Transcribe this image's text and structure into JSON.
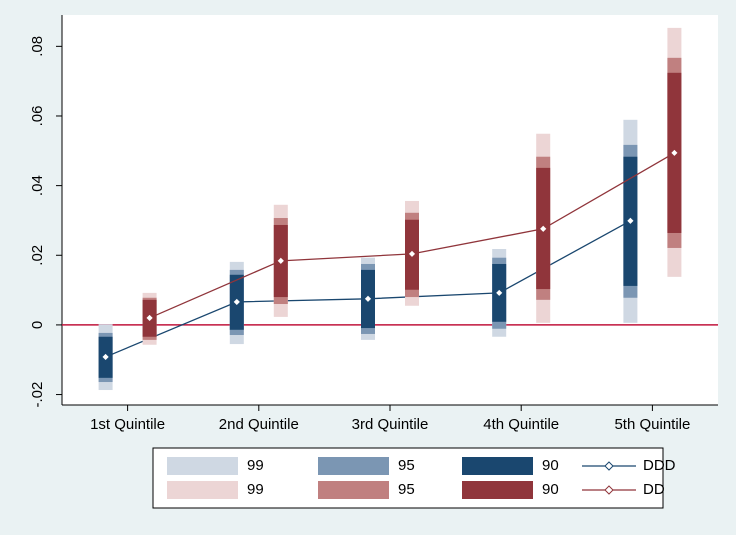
{
  "chart_data": {
    "type": "interval-dot",
    "categories": [
      "1st Quintile",
      "2nd Quintile",
      "3rd Quintile",
      "4th Quintile",
      "5th Quintile"
    ],
    "ylim": [
      -0.023,
      0.089
    ],
    "yticks": [
      {
        "value": -0.02,
        "label": "-.02"
      },
      0,
      {
        "value": 0.02,
        "label": ".02"
      },
      {
        "value": 0.04,
        "label": ".04"
      },
      {
        "value": 0.06,
        "label": ".06"
      },
      {
        "value": 0.08,
        "label": ".08"
      }
    ],
    "yline": {
      "value": 0,
      "color": "#c0143c"
    },
    "series": [
      {
        "name": "DDD",
        "color": "#1a476f",
        "values": [
          -0.0092,
          0.0066,
          0.0075,
          0.0092,
          0.0299
        ],
        "intervals": [
          {
            "name": "99",
            "color": "#cfd8e3",
            "lows": [
              -0.0187,
              -0.0055,
              -0.0043,
              -0.0034,
              0.0006
            ],
            "highs": [
              0.0002,
              0.0181,
              0.0193,
              0.0218,
              0.0589
            ]
          },
          {
            "name": "95",
            "color": "#7b96b3",
            "lows": [
              -0.0164,
              -0.0029,
              -0.0026,
              -0.0011,
              0.0078
            ],
            "highs": [
              -0.0023,
              0.0158,
              0.0175,
              0.0193,
              0.0517
            ]
          },
          {
            "name": "90",
            "color": "#1a476f",
            "lows": [
              -0.0152,
              -0.0014,
              -0.0009,
              0.0009,
              0.0112
            ],
            "highs": [
              -0.0034,
              0.0144,
              0.0158,
              0.0175,
              0.0483
            ]
          }
        ]
      },
      {
        "name": "DD",
        "color": "#90353b",
        "values": [
          0.002,
          0.0184,
          0.0204,
          0.0276,
          0.0494
        ],
        "intervals": [
          {
            "name": "99",
            "color": "#ecd5d5",
            "lows": [
              -0.0057,
              0.0023,
              0.0055,
              0.0006,
              0.0138
            ],
            "highs": [
              0.0092,
              0.0345,
              0.0356,
              0.0549,
              0.0853
            ]
          },
          {
            "name": "95",
            "color": "#c08080",
            "lows": [
              -0.0043,
              0.006,
              0.008,
              0.0072,
              0.0221
            ],
            "highs": [
              0.0078,
              0.0307,
              0.0322,
              0.0483,
              0.0767
            ]
          },
          {
            "name": "90",
            "color": "#90353b",
            "lows": [
              -0.0034,
              0.008,
              0.0101,
              0.0103,
              0.0264
            ],
            "highs": [
              0.0072,
              0.0287,
              0.0302,
              0.0451,
              0.0724
            ]
          }
        ]
      }
    ]
  }
}
